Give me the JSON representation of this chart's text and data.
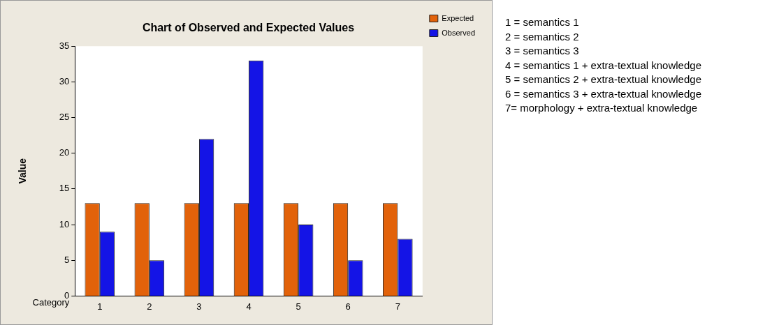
{
  "chart_data": {
    "type": "bar",
    "title": "Chart of Observed and Expected Values",
    "xlabel": "Category",
    "ylabel": "Value",
    "categories": [
      "1",
      "2",
      "3",
      "4",
      "5",
      "6",
      "7"
    ],
    "series": [
      {
        "name": "Expected",
        "color": "#e2620a",
        "values": [
          13,
          13,
          13,
          13,
          13,
          13,
          13
        ]
      },
      {
        "name": "Observed",
        "color": "#1414e6",
        "values": [
          9,
          5,
          22,
          33,
          10,
          5,
          8
        ]
      }
    ],
    "ylim": [
      0,
      35
    ],
    "yticks": [
      0,
      5,
      10,
      15,
      20,
      25,
      30,
      35
    ],
    "grid": false,
    "legend": "top right",
    "annotations": [
      "1 = semantics 1",
      "2 = semantics 2",
      "3 = semantics 3",
      "4 = semantics 1 + extra-textual knowledge",
      "5 = semantics 2 + extra-textual knowledge",
      "6 = semantics 3 + extra-textual knowledge",
      "7= morphology + extra-textual knowledge"
    ]
  }
}
